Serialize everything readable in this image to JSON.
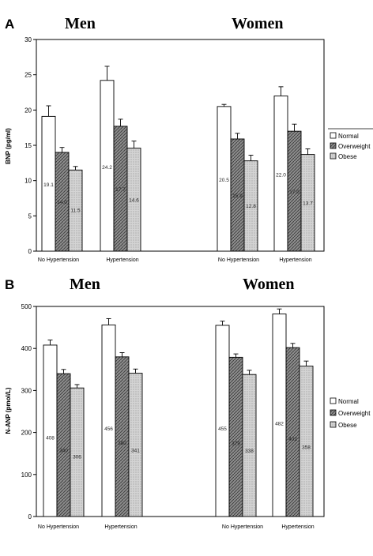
{
  "chart_data": [
    {
      "type": "bar",
      "panel": "A",
      "groups": [
        "Men",
        "Women"
      ],
      "categories": [
        "No Hypertension",
        "Hypertension"
      ],
      "ylabel": "BNP (pg/ml)",
      "ylim": [
        0,
        30
      ],
      "yticks": [
        0,
        5,
        10,
        15,
        20,
        25,
        30
      ],
      "series": [
        {
          "name": "Normal",
          "values": [
            [
              19.1,
              24.2
            ],
            [
              20.5,
              22.0
            ]
          ],
          "errors": [
            [
              1.5,
              2.0
            ],
            [
              0.3,
              1.3
            ]
          ],
          "labels": [
            [
              "19.1",
              "24.2"
            ],
            [
              "20.5",
              "22.0"
            ]
          ]
        },
        {
          "name": "Overweight",
          "values": [
            [
              14.0,
              17.7
            ],
            [
              15.9,
              17.0
            ]
          ],
          "errors": [
            [
              0.7,
              1.0
            ],
            [
              0.8,
              1.0
            ]
          ],
          "labels": [
            [
              "14.0",
              "17.7"
            ],
            [
              "15.9",
              "17.0"
            ]
          ]
        },
        {
          "name": "Obese",
          "values": [
            [
              11.5,
              14.6
            ],
            [
              12.8,
              13.7
            ]
          ],
          "errors": [
            [
              0.5,
              1.0
            ],
            [
              0.8,
              0.8
            ]
          ],
          "labels": [
            [
              "11.5",
              "14.6"
            ],
            [
              "12.8",
              "13.7"
            ]
          ]
        }
      ]
    },
    {
      "type": "bar",
      "panel": "B",
      "groups": [
        "Men",
        "Women"
      ],
      "categories": [
        "No Hypertension",
        "Hypertension"
      ],
      "ylabel": "N-ANP (pmol/L)",
      "ylim": [
        0,
        500
      ],
      "yticks": [
        0,
        100,
        200,
        300,
        400,
        500
      ],
      "series": [
        {
          "name": "Normal",
          "values": [
            [
              408,
              456
            ],
            [
              455,
              482
            ]
          ],
          "errors": [
            [
              12,
              15
            ],
            [
              10,
              12
            ]
          ],
          "labels": [
            [
              "408",
              "456"
            ],
            [
              "455",
              "482"
            ]
          ]
        },
        {
          "name": "Overweight",
          "values": [
            [
              340,
              380
            ],
            [
              379,
              402
            ]
          ],
          "errors": [
            [
              10,
              10
            ],
            [
              8,
              10
            ]
          ],
          "labels": [
            [
              "340",
              "380"
            ],
            [
              "379",
              "402"
            ]
          ]
        },
        {
          "name": "Obese",
          "values": [
            [
              306,
              341
            ],
            [
              338,
              358
            ]
          ],
          "errors": [
            [
              8,
              10
            ],
            [
              10,
              12
            ]
          ],
          "labels": [
            [
              "306",
              "341"
            ],
            [
              "338",
              "358"
            ]
          ]
        }
      ]
    }
  ],
  "colors": {
    "normal": "#ffffff",
    "overweight": "#8c8c8c",
    "obese": "#d4d4d4",
    "axis": "#000000"
  }
}
